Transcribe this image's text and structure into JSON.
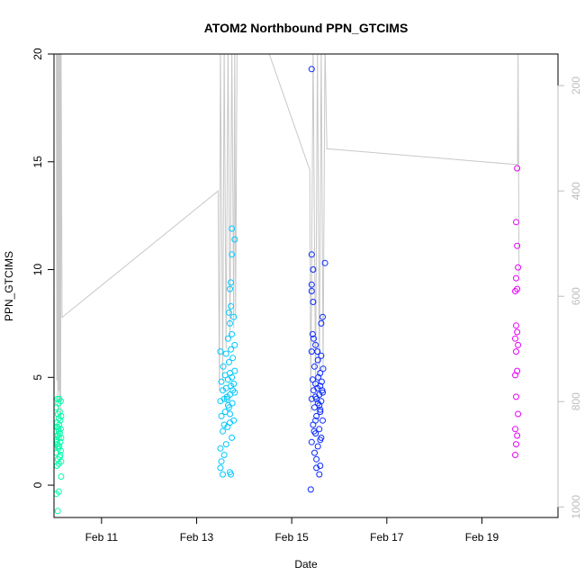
{
  "chart_data": {
    "type": "scatter",
    "title": "ATOM2 Northbound PPN_GTCIMS",
    "xlabel": "Date",
    "ylabel": "PPN_GTCIMS",
    "x_unit": "days (Feb)",
    "xlim": [
      10.0,
      20.6
    ],
    "ylim": [
      -1.5,
      20.0
    ],
    "xticks": [
      {
        "value": 11,
        "label": "Feb 11"
      },
      {
        "value": 13,
        "label": "Feb 13"
      },
      {
        "value": 15,
        "label": "Feb 15"
      },
      {
        "value": 17,
        "label": "Feb 17"
      },
      {
        "value": 19,
        "label": "Feb 19"
      }
    ],
    "yticks": [
      0,
      5,
      10,
      15,
      20
    ],
    "y2_ticks": [
      200,
      400,
      600,
      800,
      1000
    ],
    "y2_range_top_to_bottom": [
      140,
      1020
    ],
    "y2_color": "#bdbdbd",
    "grid": false,
    "legend": "none",
    "colors": {
      "flight1": "#00ffaa",
      "flight2": "#00c8ff",
      "flight3": "#0a2aff",
      "flight4": "#e800ff",
      "depth_line": "#c8c8c8"
    },
    "series": [
      {
        "color": "#00ffaa",
        "points": [
          [
            10.08,
            -1.2
          ],
          [
            10.05,
            -0.4
          ],
          [
            10.1,
            -0.3
          ],
          [
            10.15,
            0.4
          ],
          [
            10.06,
            0.9
          ],
          [
            10.1,
            1.0
          ],
          [
            10.08,
            1.2
          ],
          [
            10.12,
            1.3
          ],
          [
            10.05,
            1.5
          ],
          [
            10.14,
            1.6
          ],
          [
            10.09,
            1.7
          ],
          [
            10.11,
            1.8
          ],
          [
            10.07,
            1.9
          ],
          [
            10.13,
            2.0
          ],
          [
            10.06,
            2.1
          ],
          [
            10.1,
            2.2
          ],
          [
            10.15,
            2.2
          ],
          [
            10.08,
            2.3
          ],
          [
            10.12,
            2.4
          ],
          [
            10.05,
            2.5
          ],
          [
            10.09,
            2.6
          ],
          [
            10.14,
            2.6
          ],
          [
            10.07,
            2.7
          ],
          [
            10.11,
            2.8
          ],
          [
            10.06,
            2.9
          ],
          [
            10.13,
            3.0
          ],
          [
            10.1,
            3.1
          ],
          [
            10.15,
            3.2
          ],
          [
            10.08,
            3.3
          ],
          [
            10.12,
            3.4
          ],
          [
            10.05,
            3.6
          ],
          [
            10.09,
            3.8
          ],
          [
            10.14,
            3.9
          ],
          [
            10.07,
            4.0
          ],
          [
            10.11,
            4.0
          ],
          [
            10.06,
            2.0
          ],
          [
            10.13,
            1.4
          ],
          [
            10.1,
            2.5
          ],
          [
            10.15,
            1.1
          ],
          [
            10.08,
            1.8
          ]
        ]
      },
      {
        "color": "#00c8ff",
        "points": [
          [
            13.5,
            0.8
          ],
          [
            13.55,
            0.5
          ],
          [
            13.72,
            0.5
          ],
          [
            13.7,
            0.6
          ],
          [
            13.52,
            1.1
          ],
          [
            13.58,
            1.4
          ],
          [
            13.5,
            1.7
          ],
          [
            13.62,
            1.9
          ],
          [
            13.74,
            2.2
          ],
          [
            13.55,
            2.5
          ],
          [
            13.65,
            2.7
          ],
          [
            13.7,
            2.9
          ],
          [
            13.78,
            3.0
          ],
          [
            13.52,
            3.2
          ],
          [
            13.6,
            3.4
          ],
          [
            13.68,
            3.6
          ],
          [
            13.75,
            3.8
          ],
          [
            13.5,
            3.9
          ],
          [
            13.58,
            4.0
          ],
          [
            13.64,
            4.1
          ],
          [
            13.7,
            4.2
          ],
          [
            13.8,
            4.3
          ],
          [
            13.55,
            4.4
          ],
          [
            13.62,
            4.5
          ],
          [
            13.72,
            4.6
          ],
          [
            13.78,
            4.7
          ],
          [
            13.52,
            4.8
          ],
          [
            13.66,
            4.9
          ],
          [
            13.74,
            5.0
          ],
          [
            13.6,
            5.1
          ],
          [
            13.7,
            5.2
          ],
          [
            13.8,
            5.3
          ],
          [
            13.56,
            5.5
          ],
          [
            13.68,
            5.7
          ],
          [
            13.76,
            5.9
          ],
          [
            13.62,
            6.1
          ],
          [
            13.72,
            6.3
          ],
          [
            13.5,
            6.2
          ],
          [
            13.8,
            6.5
          ],
          [
            13.66,
            6.8
          ],
          [
            13.74,
            7.0
          ],
          [
            13.7,
            7.5
          ],
          [
            13.78,
            7.8
          ],
          [
            13.68,
            8.0
          ],
          [
            13.72,
            8.3
          ],
          [
            13.7,
            9.1
          ],
          [
            13.72,
            9.4
          ],
          [
            13.74,
            10.7
          ],
          [
            13.8,
            11.4
          ],
          [
            13.74,
            11.9
          ],
          [
            13.64,
            4.0
          ],
          [
            13.7,
            3.3
          ],
          [
            13.76,
            4.4
          ],
          [
            13.58,
            2.8
          ],
          [
            13.66,
            3.7
          ]
        ]
      },
      {
        "color": "#0a2aff",
        "points": [
          [
            15.4,
            -0.2
          ],
          [
            15.58,
            0.5
          ],
          [
            15.52,
            0.8
          ],
          [
            15.6,
            0.9
          ],
          [
            15.48,
            1.5
          ],
          [
            15.55,
            1.8
          ],
          [
            15.42,
            2.0
          ],
          [
            15.62,
            2.2
          ],
          [
            15.5,
            2.4
          ],
          [
            15.58,
            2.6
          ],
          [
            15.45,
            2.8
          ],
          [
            15.65,
            3.0
          ],
          [
            15.52,
            3.2
          ],
          [
            15.6,
            3.4
          ],
          [
            15.48,
            3.6
          ],
          [
            15.55,
            3.8
          ],
          [
            15.62,
            3.9
          ],
          [
            15.42,
            4.0
          ],
          [
            15.5,
            4.1
          ],
          [
            15.58,
            4.2
          ],
          [
            15.65,
            4.3
          ],
          [
            15.46,
            4.4
          ],
          [
            15.54,
            4.5
          ],
          [
            15.6,
            4.6
          ],
          [
            15.5,
            4.7
          ],
          [
            15.63,
            4.8
          ],
          [
            15.44,
            4.9
          ],
          [
            15.56,
            5.0
          ],
          [
            15.6,
            5.2
          ],
          [
            15.48,
            5.5
          ],
          [
            15.55,
            5.8
          ],
          [
            15.62,
            6.0
          ],
          [
            15.42,
            6.2
          ],
          [
            15.5,
            6.5
          ],
          [
            15.46,
            6.8
          ],
          [
            15.44,
            7.0
          ],
          [
            15.62,
            7.5
          ],
          [
            15.65,
            7.8
          ],
          [
            15.45,
            8.5
          ],
          [
            15.42,
            9.0
          ],
          [
            15.42,
            9.3
          ],
          [
            15.45,
            10.0
          ],
          [
            15.42,
            10.7
          ],
          [
            15.7,
            10.3
          ],
          [
            15.42,
            19.3
          ],
          [
            15.6,
            3.5
          ],
          [
            15.52,
            4.0
          ],
          [
            15.58,
            3.7
          ],
          [
            15.64,
            4.4
          ],
          [
            15.5,
            3.0
          ],
          [
            15.47,
            2.5
          ],
          [
            15.66,
            5.4
          ],
          [
            15.54,
            6.2
          ],
          [
            15.6,
            2.1
          ],
          [
            15.52,
            1.2
          ]
        ]
      },
      {
        "color": "#e800ff",
        "points": [
          [
            19.7,
            1.4
          ],
          [
            19.72,
            1.9
          ],
          [
            19.74,
            2.3
          ],
          [
            19.7,
            2.6
          ],
          [
            19.76,
            3.3
          ],
          [
            19.72,
            4.1
          ],
          [
            19.7,
            5.1
          ],
          [
            19.74,
            5.3
          ],
          [
            19.72,
            6.2
          ],
          [
            19.76,
            6.5
          ],
          [
            19.7,
            6.8
          ],
          [
            19.74,
            7.1
          ],
          [
            19.72,
            7.4
          ],
          [
            19.7,
            9.0
          ],
          [
            19.74,
            9.1
          ],
          [
            19.72,
            9.6
          ],
          [
            19.76,
            10.1
          ],
          [
            19.74,
            11.1
          ],
          [
            19.72,
            12.2
          ],
          [
            19.74,
            14.7
          ]
        ]
      }
    ],
    "depth_track": {
      "y2_axis_values": [
        [
          10.05,
          120
        ],
        [
          10.06,
          760
        ],
        [
          10.07,
          120
        ],
        [
          10.08,
          820
        ],
        [
          10.09,
          120
        ],
        [
          10.1,
          780
        ],
        [
          10.11,
          120
        ],
        [
          10.12,
          800
        ],
        [
          10.13,
          120
        ],
        [
          10.14,
          830
        ],
        [
          10.15,
          120
        ],
        [
          10.17,
          640
        ],
        [
          13.45,
          400
        ],
        [
          13.48,
          780
        ],
        [
          13.5,
          120
        ],
        [
          13.55,
          760
        ],
        [
          13.58,
          120
        ],
        [
          13.62,
          700
        ],
        [
          13.66,
          120
        ],
        [
          13.7,
          680
        ],
        [
          13.74,
          120
        ],
        [
          13.78,
          660
        ],
        [
          13.8,
          120
        ],
        [
          13.82,
          640
        ],
        [
          13.85,
          120
        ],
        [
          14.45,
          120
        ],
        [
          15.38,
          360
        ],
        [
          15.4,
          820
        ],
        [
          15.45,
          120
        ],
        [
          15.5,
          780
        ],
        [
          15.54,
          120
        ],
        [
          15.58,
          760
        ],
        [
          15.62,
          120
        ],
        [
          15.66,
          740
        ],
        [
          15.7,
          120
        ],
        [
          15.74,
          320
        ],
        [
          19.75,
          350
        ],
        [
          19.76,
          120
        ],
        [
          19.78,
          560
        ]
      ]
    }
  }
}
